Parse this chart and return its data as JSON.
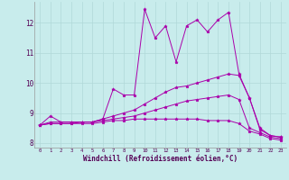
{
  "background_color": "#c8ecec",
  "line_color": "#aa00aa",
  "xlabel": "Windchill (Refroidissement éolien,°C)",
  "xlim": [
    -0.5,
    23.5
  ],
  "ylim": [
    7.85,
    12.7
  ],
  "yticks": [
    8,
    9,
    10,
    11,
    12
  ],
  "xticks": [
    0,
    1,
    2,
    3,
    4,
    5,
    6,
    7,
    8,
    9,
    10,
    11,
    12,
    13,
    14,
    15,
    16,
    17,
    18,
    19,
    20,
    21,
    22,
    23
  ],
  "series": [
    [
      8.6,
      8.9,
      8.7,
      8.7,
      8.7,
      8.7,
      8.8,
      9.8,
      9.6,
      9.6,
      12.45,
      11.5,
      11.9,
      10.7,
      11.9,
      12.1,
      11.7,
      12.1,
      12.35,
      10.3,
      9.5,
      8.5,
      8.25,
      8.2
    ],
    [
      8.6,
      8.7,
      8.7,
      8.7,
      8.7,
      8.7,
      8.8,
      8.9,
      9.0,
      9.1,
      9.3,
      9.5,
      9.7,
      9.85,
      9.9,
      10.0,
      10.1,
      10.2,
      10.3,
      10.25,
      9.5,
      8.45,
      8.25,
      8.2
    ],
    [
      8.6,
      8.65,
      8.65,
      8.65,
      8.7,
      8.7,
      8.75,
      8.8,
      8.85,
      8.9,
      9.0,
      9.1,
      9.2,
      9.3,
      9.4,
      9.45,
      9.5,
      9.55,
      9.6,
      9.45,
      8.5,
      8.35,
      8.2,
      8.15
    ],
    [
      8.6,
      8.65,
      8.65,
      8.65,
      8.65,
      8.65,
      8.7,
      8.75,
      8.75,
      8.8,
      8.8,
      8.8,
      8.8,
      8.8,
      8.8,
      8.8,
      8.75,
      8.75,
      8.75,
      8.65,
      8.4,
      8.3,
      8.15,
      8.1
    ]
  ]
}
